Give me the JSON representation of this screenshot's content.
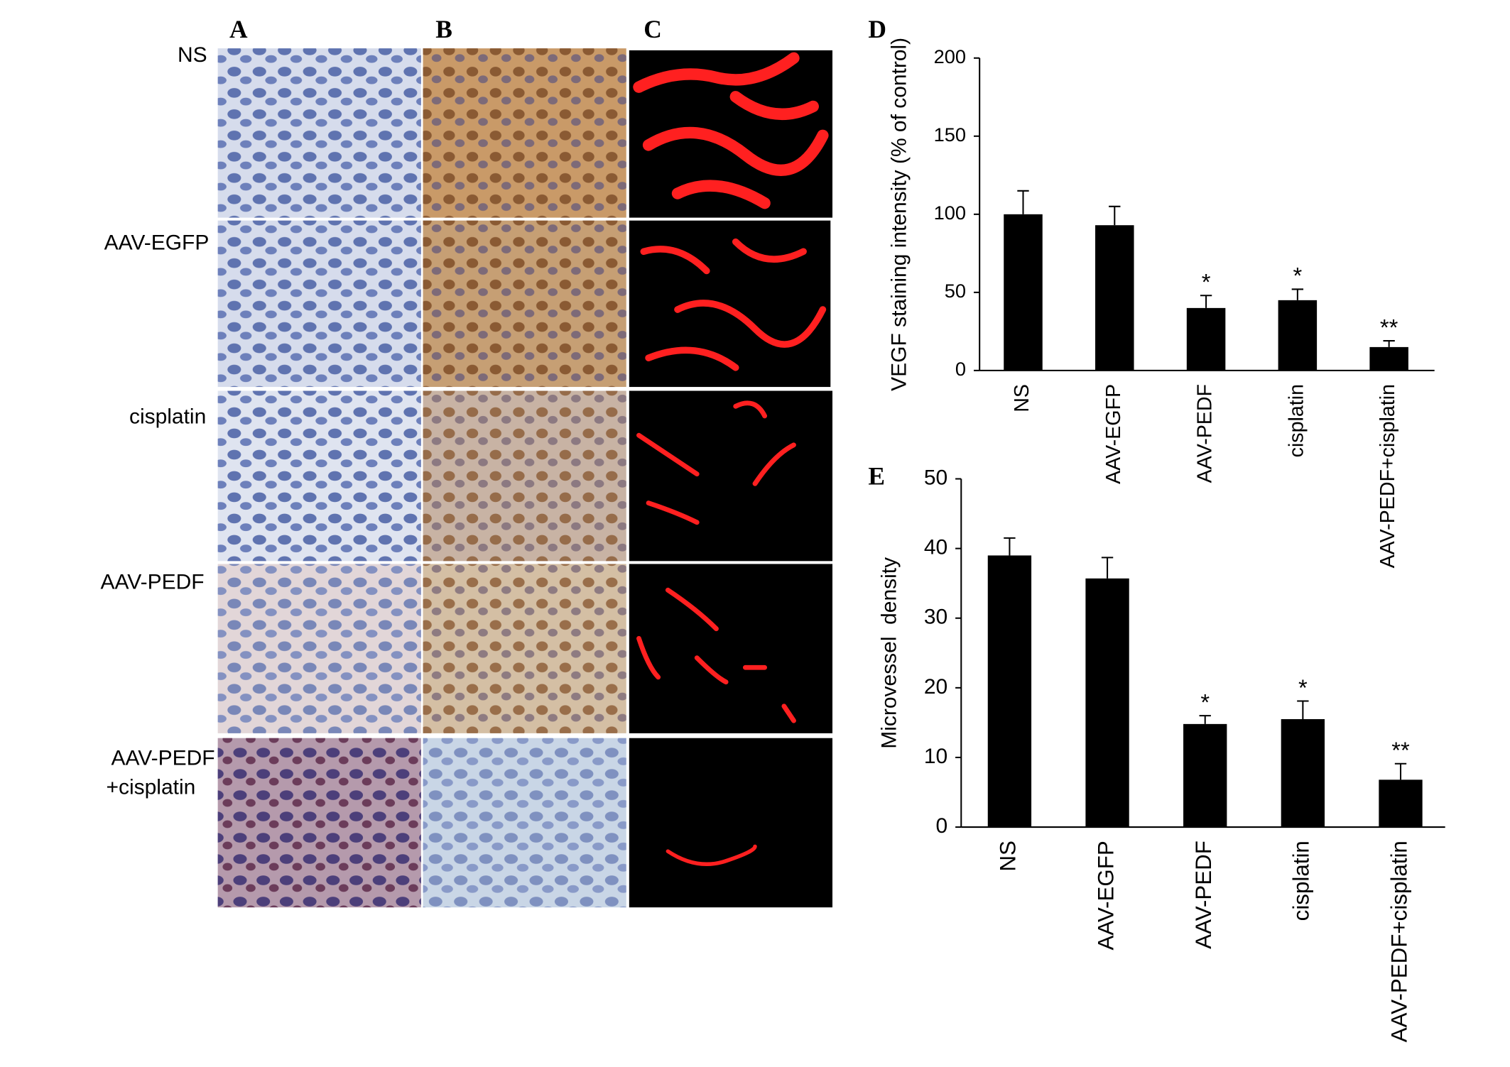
{
  "panel_labels": [
    "A",
    "B",
    "C",
    "D",
    "E"
  ],
  "row_labels": [
    [
      "NS"
    ],
    [
      "AAV-EGFP"
    ],
    [
      "cisplatin"
    ],
    [
      "AAV-PEDF"
    ],
    [
      "AAV-PEDF",
      "+cisplatin"
    ]
  ],
  "chart_data": [
    {
      "type": "bar",
      "ylabel": "VEGF staining intensity (% of control)",
      "categories": [
        "NS",
        "AAV-EGFP",
        "AAV-PEDF",
        "cisplatin",
        "AAV-PEDF+cisplatin"
      ],
      "values": [
        100,
        93,
        40,
        45,
        15
      ],
      "errors": [
        15,
        12,
        8,
        7,
        4
      ],
      "color": "#000000",
      "annotations": [
        {
          "category": "AAV-PEDF",
          "text": "*"
        },
        {
          "category": "cisplatin",
          "text": "*"
        },
        {
          "category": "AAV-PEDF+cisplatin",
          "text": "**"
        }
      ],
      "ylim": [
        0,
        200
      ],
      "yticks": [
        0,
        50,
        100,
        150,
        200
      ],
      "grid": false
    },
    {
      "type": "bar",
      "ylabel": "Microvessel  density",
      "categories": [
        "NS",
        "AAV-EGFP",
        "AAV-PEDF",
        "cisplatin",
        "AAV-PEDF+cisplatin"
      ],
      "values": [
        39,
        35.7,
        14.8,
        15.5,
        6.8
      ],
      "errors": [
        2.5,
        3,
        1.2,
        2.6,
        2.3
      ],
      "color": "#000000",
      "annotations": [
        {
          "category": "AAV-PEDF",
          "text": "*"
        },
        {
          "category": "cisplatin",
          "text": "*"
        },
        {
          "category": "AAV-PEDF+cisplatin",
          "text": "**"
        }
      ],
      "ylim": [
        0,
        50
      ],
      "yticks": [
        0,
        10,
        20,
        30,
        40,
        50
      ],
      "grid": false
    }
  ]
}
